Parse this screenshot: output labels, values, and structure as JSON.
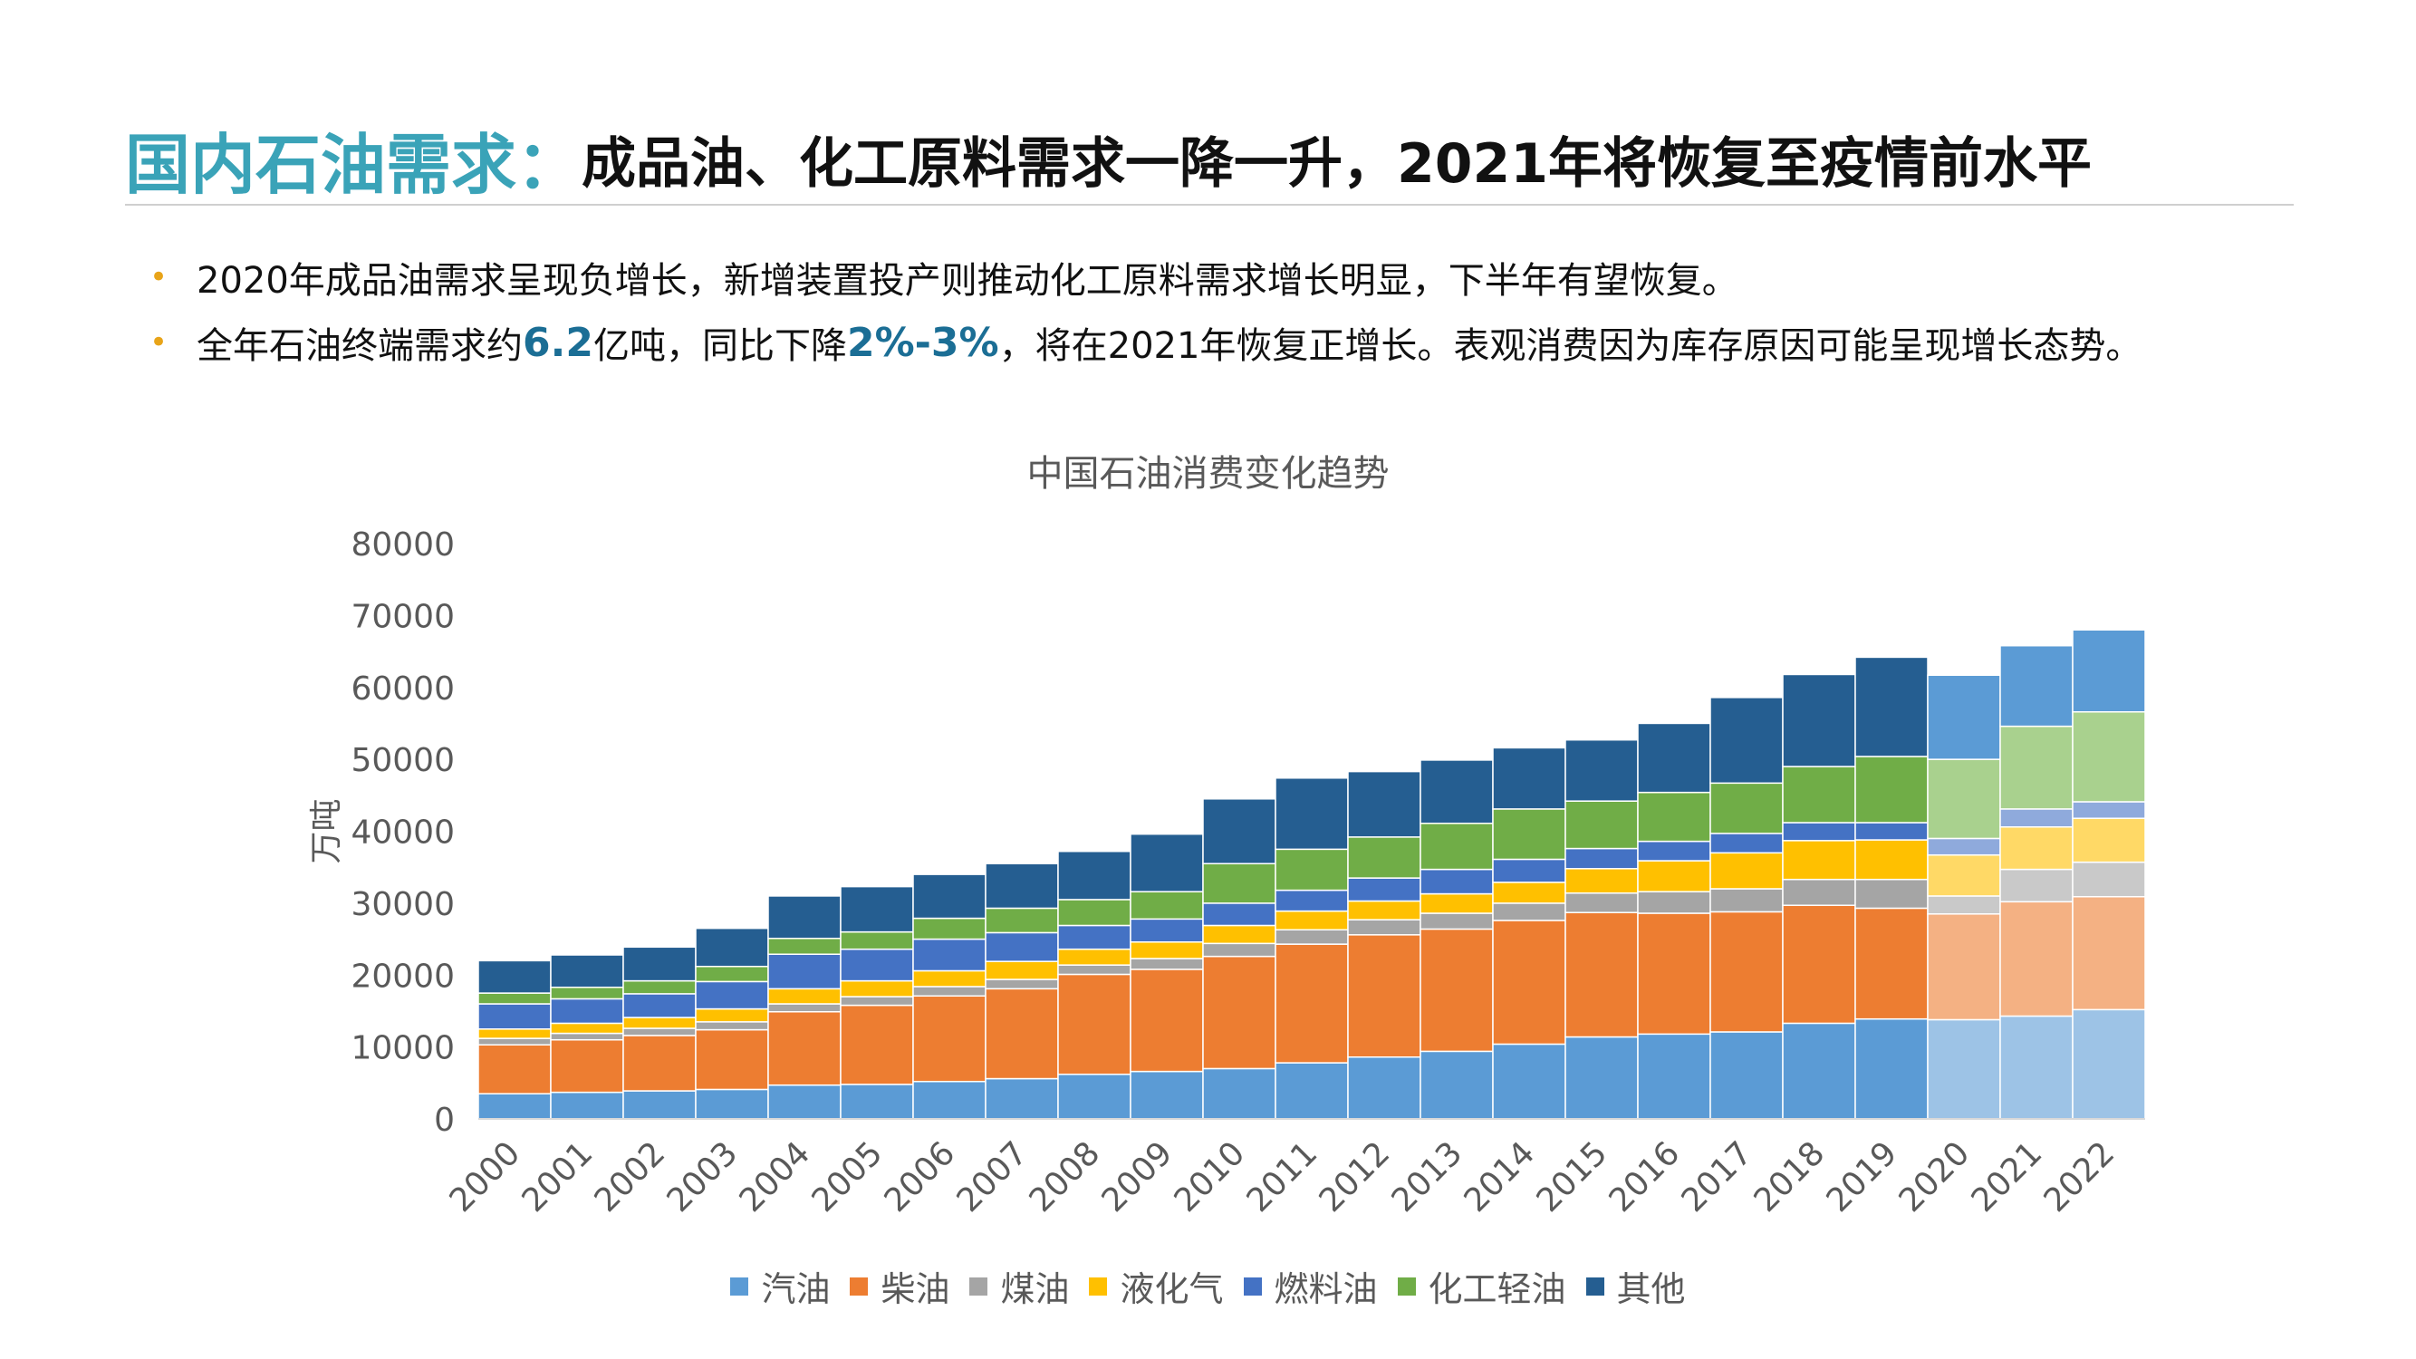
{
  "header": {
    "title_accent": "国内石油需求：",
    "title_rest": "成品油、化工原料需求一降一升，2021年将恢复至疫情前水平"
  },
  "bullets": [
    {
      "text": "2020年成品油需求呈现负增长，新增装置投产则推动化工原料需求增长明显，下半年有望恢复。"
    },
    {
      "pre": "全年石油终端需求约",
      "hl1": "6.2",
      "mid": "亿吨，同比下降",
      "hl2": "2%-3%",
      "post": "，将在2021年恢复正增长。表观消费因为库存原因可能呈现增长态势。"
    }
  ],
  "colors": {
    "accent": "#3aa3b8",
    "bullet": "#e8a419",
    "highlight": "#1b6e95"
  },
  "chart_data": {
    "type": "bar",
    "stacked": true,
    "title": "中国石油消费变化趋势",
    "xlabel": "",
    "ylabel": "万吨",
    "ylim": [
      0,
      80000
    ],
    "yticks": [
      "0",
      "10000",
      "20000",
      "30000",
      "40000",
      "50000",
      "60000",
      "70000",
      "80000"
    ],
    "categories": [
      "2000",
      "2001",
      "2002",
      "2003",
      "2004",
      "2005",
      "2006",
      "2007",
      "2008",
      "2009",
      "2010",
      "2011",
      "2012",
      "2013",
      "2014",
      "2015",
      "2016",
      "2017",
      "2018",
      "2019",
      "2020",
      "2021",
      "2022"
    ],
    "forecast_from": "2020",
    "legend_position": "bottom",
    "series": [
      {
        "name": "汽油",
        "color": "#5b9bd5",
        "forecast_color": "#9dc3e6",
        "values": [
          3500,
          3700,
          3900,
          4100,
          4700,
          4800,
          5200,
          5600,
          6200,
          6600,
          7000,
          7800,
          8600,
          9400,
          10400,
          11400,
          11800,
          12100,
          13300,
          13900,
          13800,
          14300,
          15200
        ]
      },
      {
        "name": "柴油",
        "color": "#ed7d31",
        "forecast_color": "#f4b183",
        "values": [
          6800,
          7300,
          7700,
          8300,
          10200,
          11000,
          11900,
          12500,
          13900,
          14200,
          15600,
          16500,
          17000,
          17000,
          17200,
          17300,
          16800,
          16700,
          16400,
          15400,
          14700,
          15900,
          15700
        ]
      },
      {
        "name": "煤油",
        "color": "#a5a5a5",
        "forecast_color": "#c9c9c9",
        "values": [
          900,
          900,
          1000,
          1100,
          1100,
          1200,
          1300,
          1300,
          1300,
          1500,
          1800,
          2000,
          2100,
          2200,
          2400,
          2700,
          3000,
          3200,
          3600,
          4000,
          2500,
          4500,
          4800
        ]
      },
      {
        "name": "液化气",
        "color": "#ffc000",
        "forecast_color": "#ffd966",
        "values": [
          1300,
          1400,
          1500,
          1800,
          2100,
          2200,
          2200,
          2500,
          2200,
          2300,
          2500,
          2600,
          2600,
          2700,
          2900,
          3400,
          4300,
          5000,
          5400,
          5500,
          5700,
          5900,
          6100
        ]
      },
      {
        "name": "燃料油",
        "color": "#4472c4",
        "forecast_color": "#8faadc",
        "values": [
          3500,
          3400,
          3300,
          3800,
          4800,
          4400,
          4400,
          4000,
          3300,
          3200,
          3100,
          2900,
          3200,
          3400,
          3200,
          2800,
          2700,
          2700,
          2500,
          2400,
          2300,
          2500,
          2300
        ]
      },
      {
        "name": "化工轻油",
        "color": "#70ad47",
        "forecast_color": "#a9d18e",
        "values": [
          1500,
          1600,
          1800,
          2100,
          2200,
          2400,
          2900,
          3400,
          3600,
          3800,
          5500,
          5700,
          5700,
          6400,
          7000,
          6600,
          6800,
          7000,
          7800,
          9200,
          11000,
          11500,
          12500
        ]
      },
      {
        "name": "其他",
        "color": "#255e91",
        "forecast_color": "#5b9bd5",
        "values": [
          4500,
          4500,
          4700,
          5300,
          5900,
          6300,
          6100,
          6200,
          6700,
          8000,
          9000,
          9900,
          9100,
          8800,
          8500,
          8500,
          9600,
          11900,
          12800,
          13800,
          11700,
          11200,
          11400
        ]
      }
    ]
  }
}
